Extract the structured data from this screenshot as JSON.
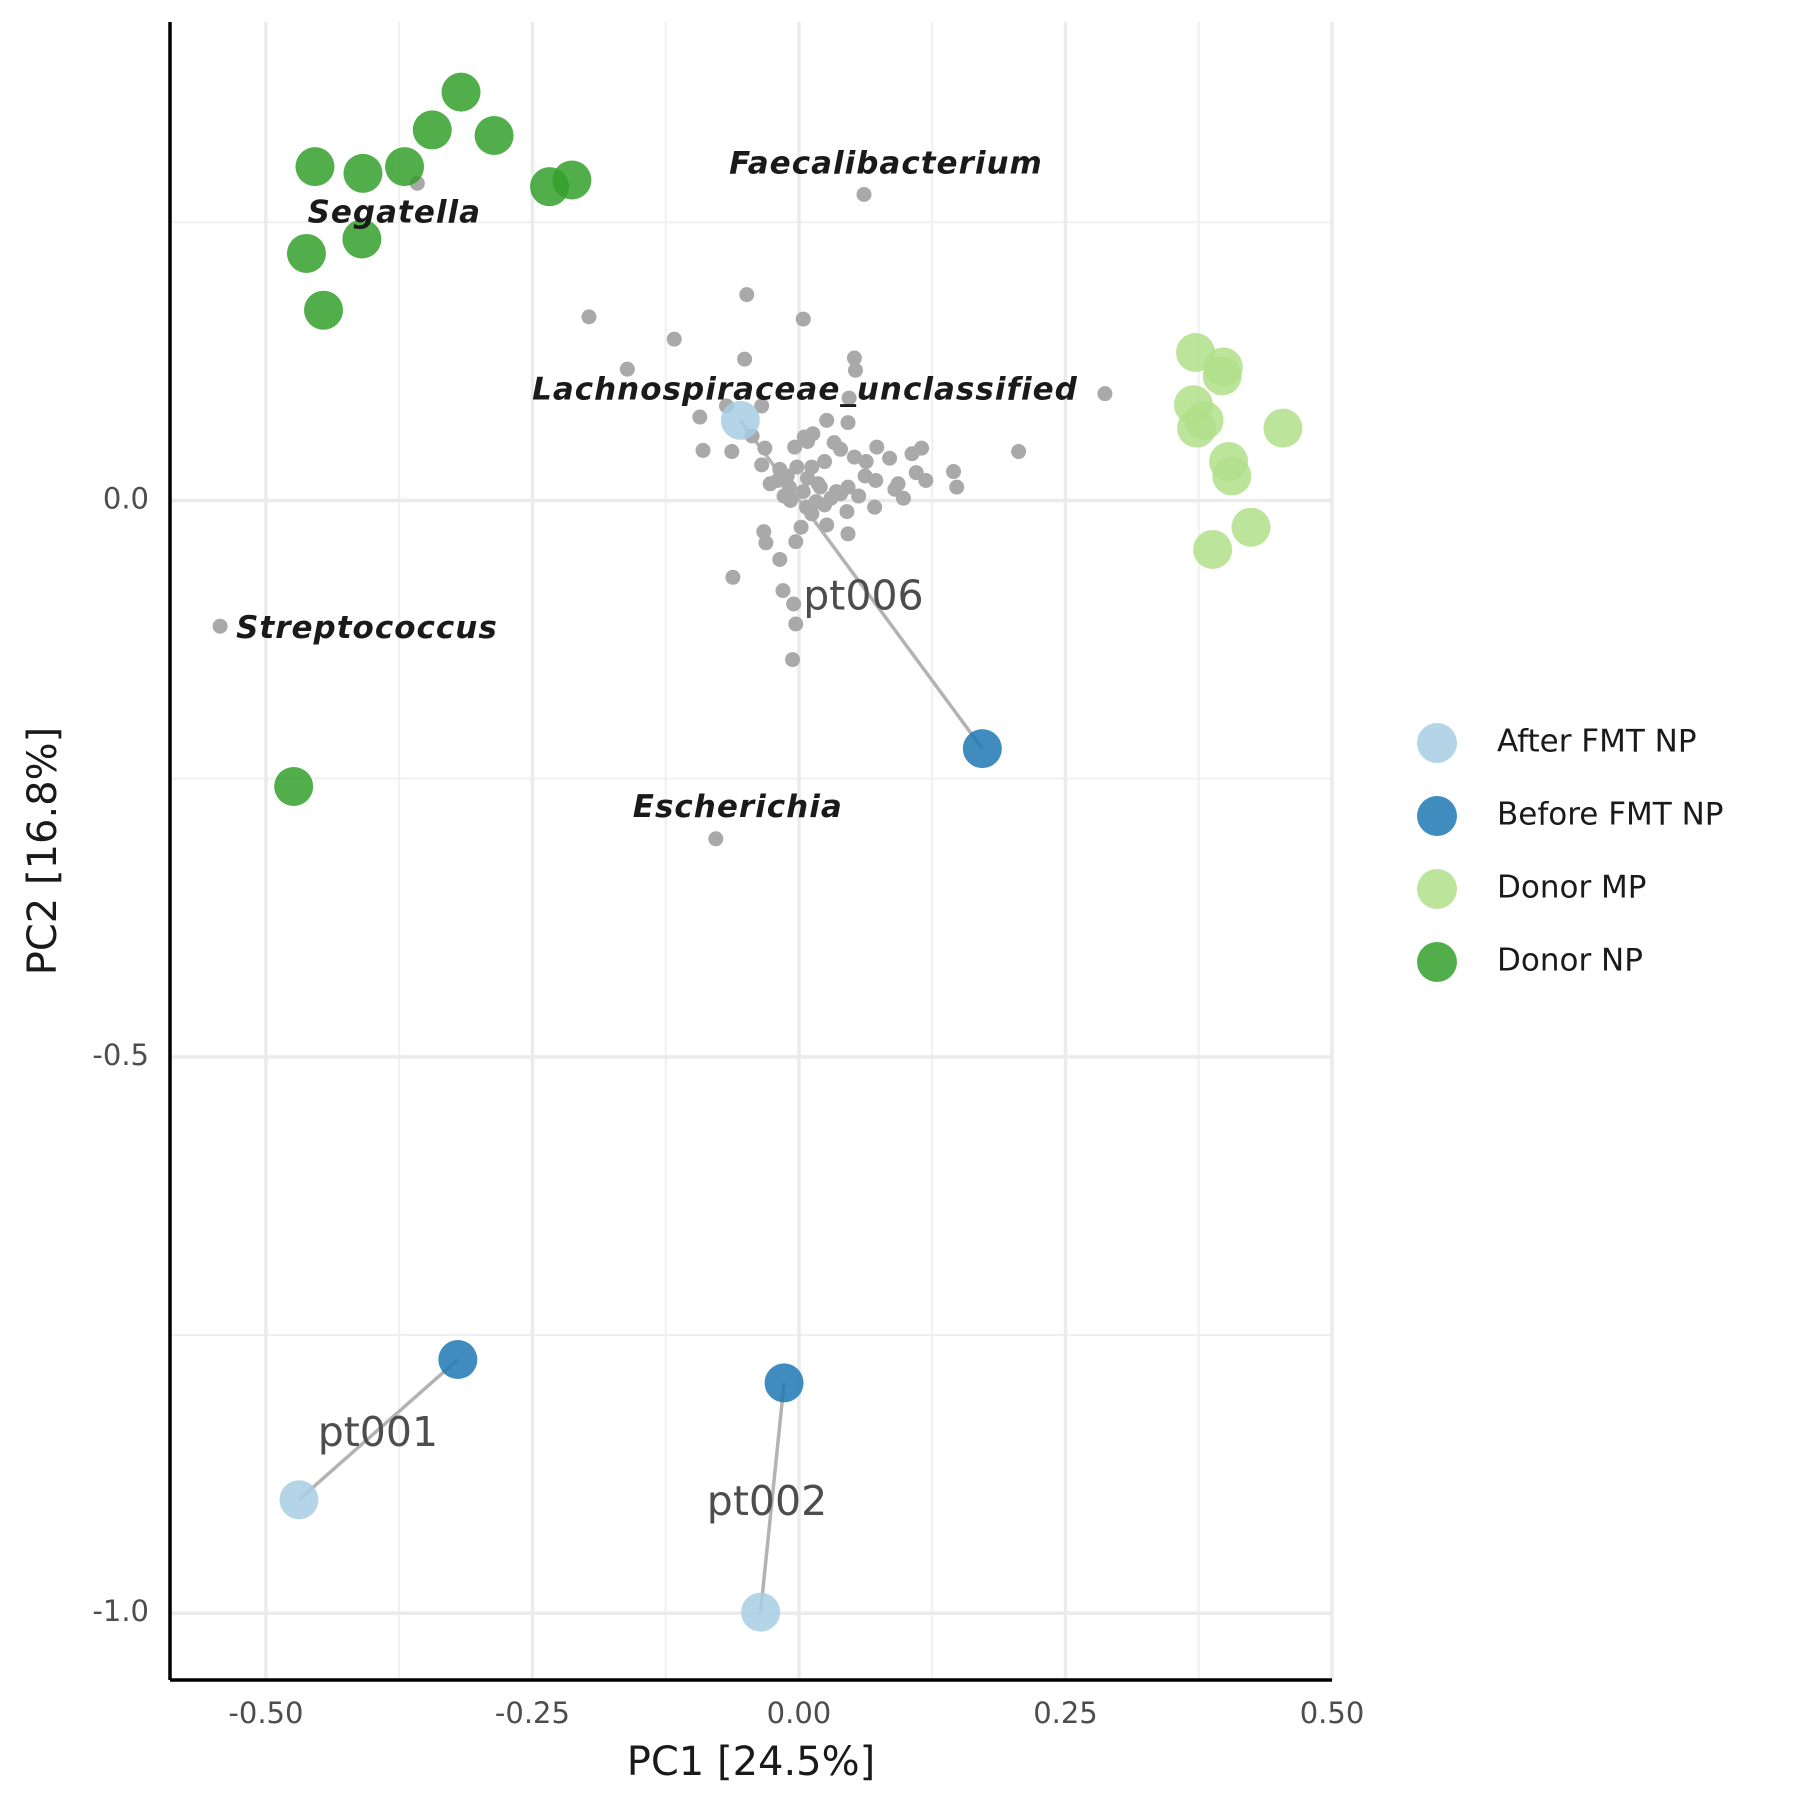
{
  "chart_data": {
    "type": "scatter",
    "title": "",
    "xlabel": "PC1 [24.5%]",
    "ylabel": "PC2 [16.8%]",
    "xlim": [
      -0.59,
      0.5
    ],
    "ylim": [
      -1.06,
      0.43
    ],
    "x_ticks": [
      -0.5,
      -0.25,
      0.0,
      0.25,
      0.5
    ],
    "x_tick_labels": [
      "-0.50",
      "-0.25",
      "0.00",
      "0.25",
      "0.50"
    ],
    "y_ticks": [
      -1.0,
      -0.5,
      0.0
    ],
    "y_tick_labels": [
      "-1.0",
      "-0.5",
      "0.0"
    ],
    "grid": true,
    "legend_position": "right",
    "series": [
      {
        "name": "After FMT NP",
        "color": "#a6cee3",
        "points": [
          [
            -0.055,
            0.072
          ],
          [
            -0.469,
            -0.898
          ],
          [
            -0.036,
            -0.999
          ]
        ]
      },
      {
        "name": "Before FMT NP",
        "color": "#1f78b4",
        "points": [
          [
            0.172,
            -0.223
          ],
          [
            -0.32,
            -0.772
          ],
          [
            -0.014,
            -0.793
          ]
        ]
      },
      {
        "name": "Donor MP",
        "color": "#b2df8a",
        "points": [
          [
            0.372,
            0.133
          ],
          [
            0.398,
            0.12
          ],
          [
            0.397,
            0.112
          ],
          [
            0.37,
            0.086
          ],
          [
            0.38,
            0.072
          ],
          [
            0.373,
            0.065
          ],
          [
            0.454,
            0.065
          ],
          [
            0.403,
            0.035
          ],
          [
            0.406,
            0.022
          ],
          [
            0.424,
            -0.024
          ],
          [
            0.388,
            -0.044
          ]
        ]
      },
      {
        "name": "Donor NP",
        "color": "#33a02c",
        "points": [
          [
            -0.317,
            0.367
          ],
          [
            -0.344,
            0.333
          ],
          [
            -0.286,
            0.328
          ],
          [
            -0.454,
            0.3
          ],
          [
            -0.409,
            0.294
          ],
          [
            -0.37,
            0.3
          ],
          [
            -0.234,
            0.282
          ],
          [
            -0.213,
            0.288
          ],
          [
            -0.462,
            0.222
          ],
          [
            -0.41,
            0.235
          ],
          [
            -0.446,
            0.171
          ],
          [
            -0.474,
            -0.257
          ]
        ]
      }
    ],
    "taxa_points": {
      "color": "#a9a9a9",
      "points": [
        [
          -0.358,
          0.285
        ],
        [
          0.061,
          0.275
        ],
        [
          -0.197,
          0.165
        ],
        [
          -0.049,
          0.185
        ],
        [
          0.004,
          0.163
        ],
        [
          -0.117,
          0.145
        ],
        [
          -0.051,
          0.127
        ],
        [
          -0.161,
          0.118
        ],
        [
          0.052,
          0.128
        ],
        [
          0.053,
          0.117
        ],
        [
          0.287,
          0.096
        ],
        [
          -0.068,
          0.085
        ],
        [
          -0.035,
          0.085
        ],
        [
          0.047,
          0.092
        ],
        [
          -0.093,
          0.075
        ],
        [
          0.026,
          0.072
        ],
        [
          0.046,
          0.07
        ],
        [
          0.013,
          0.06
        ],
        [
          0.005,
          0.057
        ],
        [
          -0.044,
          0.058
        ],
        [
          0.073,
          0.048
        ],
        [
          0.033,
          0.052
        ],
        [
          0.008,
          0.053
        ],
        [
          0.115,
          0.047
        ],
        [
          0.206,
          0.044
        ],
        [
          -0.09,
          0.045
        ],
        [
          -0.063,
          0.044
        ],
        [
          -0.032,
          0.047
        ],
        [
          -0.004,
          0.048
        ],
        [
          0.039,
          0.046
        ],
        [
          0.085,
          0.038
        ],
        [
          0.106,
          0.042
        ],
        [
          0.052,
          0.039
        ],
        [
          0.024,
          0.035
        ],
        [
          0.012,
          0.03
        ],
        [
          0.063,
          0.035
        ],
        [
          -0.035,
          0.032
        ],
        [
          -0.018,
          0.028
        ],
        [
          0.11,
          0.025
        ],
        [
          0.062,
          0.022
        ],
        [
          0.072,
          0.018
        ],
        [
          0.008,
          0.02
        ],
        [
          -0.027,
          0.015
        ],
        [
          0.093,
          0.015
        ],
        [
          0.145,
          0.026
        ],
        [
          0.046,
          0.012
        ],
        [
          -0.009,
          0.012
        ],
        [
          0.02,
          0.012
        ],
        [
          0.035,
          0.008
        ],
        [
          0.119,
          0.018
        ],
        [
          0.148,
          0.012
        ],
        [
          -0.014,
          0.004
        ],
        [
          0.03,
          0.002
        ],
        [
          0.056,
          0.004
        ],
        [
          0.098,
          0.002
        ],
        [
          0.007,
          -0.006
        ],
        [
          0.024,
          -0.004
        ],
        [
          0.045,
          -0.01
        ],
        [
          0.071,
          -0.006
        ],
        [
          -0.02,
          0.018
        ],
        [
          -0.011,
          0.022
        ],
        [
          0.016,
          -0.001
        ],
        [
          0.039,
          0.006
        ],
        [
          0.09,
          0.01
        ],
        [
          -0.033,
          -0.028
        ],
        [
          0.002,
          -0.024
        ],
        [
          0.026,
          -0.022
        ],
        [
          0.046,
          -0.03
        ],
        [
          -0.031,
          -0.038
        ],
        [
          -0.003,
          -0.037
        ],
        [
          -0.018,
          -0.053
        ],
        [
          -0.062,
          -0.069
        ],
        [
          -0.015,
          -0.081
        ],
        [
          -0.005,
          -0.093
        ],
        [
          -0.003,
          -0.111
        ],
        [
          -0.006,
          -0.143
        ],
        [
          -0.543,
          -0.113
        ],
        [
          -0.078,
          -0.304
        ],
        [
          0.004,
          0.008
        ],
        [
          -0.008,
          0.0
        ],
        [
          0.018,
          0.015
        ],
        [
          -0.002,
          0.03
        ],
        [
          0.012,
          -0.012
        ]
      ]
    },
    "taxa_labels": [
      {
        "text": "Faecalibacterium",
        "x": 0.061,
        "y": 0.275
      },
      {
        "text": "Segatella",
        "x": -0.358,
        "y": 0.285
      },
      {
        "text": "Lachnospiraceae_unclassified",
        "x": 0.287,
        "y": 0.096
      },
      {
        "text": "Streptococcus",
        "x": -0.543,
        "y": -0.113
      },
      {
        "text": "Escherichia",
        "x": -0.078,
        "y": -0.304
      }
    ],
    "patient_links": [
      {
        "label": "pt006",
        "from": [
          0.172,
          -0.223
        ],
        "to": [
          -0.055,
          0.072
        ]
      },
      {
        "label": "pt001",
        "from": [
          -0.32,
          -0.772
        ],
        "to": [
          -0.469,
          -0.898
        ]
      },
      {
        "label": "pt002",
        "from": [
          -0.014,
          -0.793
        ],
        "to": [
          -0.036,
          -0.999
        ]
      }
    ]
  }
}
